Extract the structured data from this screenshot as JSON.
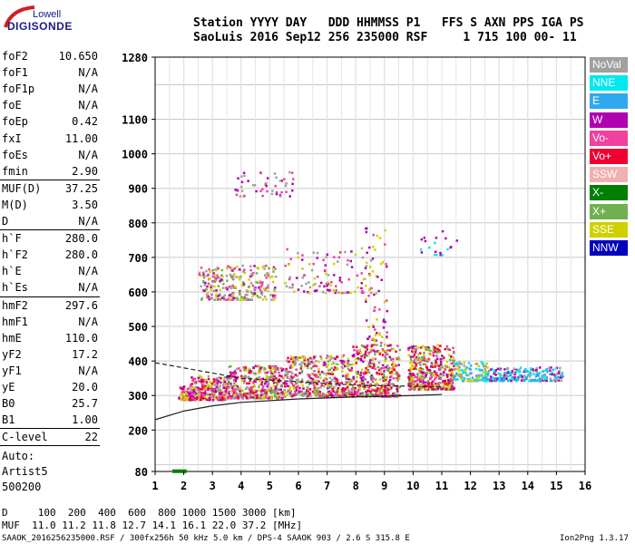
{
  "logo": {
    "top": "Lowell",
    "bottom": "DIGISONDE"
  },
  "header": {
    "line1": "Station YYYY DAY   DDD HHMMSS P1   FFS S AXN PPS IGA PS",
    "line2": "SaoLuis 2016 Sep12 256 235000 RSF     1 715 100 00- 11"
  },
  "params": [
    {
      "key": "foF2",
      "value": "10.650"
    },
    {
      "key": "foF1",
      "value": "N/A"
    },
    {
      "key": "foF1p",
      "value": "N/A"
    },
    {
      "key": "foE",
      "value": "N/A"
    },
    {
      "key": "foEp",
      "value": "0.42"
    },
    {
      "key": "fxI",
      "value": "11.00"
    },
    {
      "key": "foEs",
      "value": "N/A"
    },
    {
      "key": "fmin",
      "value": "2.90"
    },
    {
      "key": "MUF(D)",
      "value": "37.25"
    },
    {
      "key": "M(D)",
      "value": "3.50"
    },
    {
      "key": "D",
      "value": "N/A"
    },
    {
      "key": "h`F",
      "value": "280.0"
    },
    {
      "key": "h`F2",
      "value": "280.0"
    },
    {
      "key": "h`E",
      "value": "N/A"
    },
    {
      "key": "h`Es",
      "value": "N/A"
    },
    {
      "key": "hmF2",
      "value": "297.6"
    },
    {
      "key": "hmF1",
      "value": "N/A"
    },
    {
      "key": "hmE",
      "value": "110.0"
    },
    {
      "key": "yF2",
      "value": "17.2"
    },
    {
      "key": "yF1",
      "value": "N/A"
    },
    {
      "key": "yE",
      "value": "20.0"
    },
    {
      "key": "B0",
      "value": "25.7"
    },
    {
      "key": "B1",
      "value": "1.00"
    },
    {
      "key": "C-level",
      "value": "22"
    }
  ],
  "notes": [
    "Auto:",
    "Artist5",
    "500200"
  ],
  "legend": [
    {
      "label": "NoVal",
      "color": "#a0a0a0"
    },
    {
      "label": "NNE",
      "color": "#00e8f0"
    },
    {
      "label": "E",
      "color": "#30a8f0"
    },
    {
      "label": "W",
      "color": "#b000b0"
    },
    {
      "label": "Vo-",
      "color": "#f040a0"
    },
    {
      "label": "Vo+",
      "color": "#f00030"
    },
    {
      "label": "SSW",
      "color": "#f0b0b0"
    },
    {
      "label": "X-",
      "color": "#008000"
    },
    {
      "label": "X+",
      "color": "#70b050"
    },
    {
      "label": "SSE",
      "color": "#d0d000"
    },
    {
      "label": "NNW",
      "color": "#0000c0"
    }
  ],
  "footer": {
    "d_line": "D     100  200  400  600  800 1000 1500 3000 [km]",
    "muf_line": "MUF  11.0 11.2 11.8 12.7 14.1 16.1 22.0 37.2 [MHz]",
    "info_left": "SAAOK_2016256235000.RSF / 300fx256h 50 kHz 5.0 km / DPS-4 SAAOK 903 / 2.6 S 315.8 E",
    "info_right": "Ion2Png 1.3.17"
  },
  "chart_data": {
    "type": "scatter",
    "xlim": [
      1,
      16
    ],
    "ylim": [
      80,
      1280
    ],
    "x_ticks": [
      1,
      2,
      3,
      4,
      5,
      6,
      7,
      8,
      9,
      10,
      11,
      12,
      13,
      14,
      15,
      16
    ],
    "y_ticks": [
      80,
      200,
      300,
      400,
      500,
      600,
      700,
      800,
      900,
      1000,
      1100,
      1280
    ],
    "grid": true,
    "clusters": [
      {
        "x": [
          1.8,
          2.3
        ],
        "y": [
          290,
          330
        ],
        "n": 80,
        "colors": [
          "#f00030",
          "#f040a0",
          "#b000b0",
          "#d0d000"
        ]
      },
      {
        "x": [
          2.2,
          3.5
        ],
        "y": [
          290,
          360
        ],
        "n": 260,
        "colors": [
          "#f00030",
          "#f040a0",
          "#b000b0",
          "#d0d000",
          "#a0a0a0"
        ]
      },
      {
        "x": [
          3.5,
          5.5
        ],
        "y": [
          295,
          390
        ],
        "n": 380,
        "colors": [
          "#f00030",
          "#f040a0",
          "#b000b0",
          "#d0d000",
          "#70b050",
          "#a0a0a0"
        ]
      },
      {
        "x": [
          5.5,
          7.8
        ],
        "y": [
          300,
          420
        ],
        "n": 420,
        "colors": [
          "#f00030",
          "#f040a0",
          "#b000b0",
          "#d0d000",
          "#70b050",
          "#a0a0a0"
        ]
      },
      {
        "x": [
          7.8,
          9.5
        ],
        "y": [
          300,
          450
        ],
        "n": 380,
        "colors": [
          "#f00030",
          "#f040a0",
          "#b000b0",
          "#d0d000",
          "#70b050"
        ]
      },
      {
        "x": [
          9.8,
          11.4
        ],
        "y": [
          320,
          450
        ],
        "n": 420,
        "colors": [
          "#d0d000",
          "#f00030",
          "#b000b0",
          "#f040a0",
          "#70b050"
        ]
      },
      {
        "x": [
          11.4,
          12.6
        ],
        "y": [
          345,
          400
        ],
        "n": 140,
        "colors": [
          "#00e8f0",
          "#30a8f0",
          "#a0a0a0",
          "#d0d000"
        ]
      },
      {
        "x": [
          12.6,
          15.2
        ],
        "y": [
          345,
          385
        ],
        "n": 240,
        "colors": [
          "#00e8f0",
          "#30a8f0",
          "#b000b0",
          "#a0a0a0"
        ]
      },
      {
        "x": [
          2.5,
          5.2
        ],
        "y": [
          580,
          680
        ],
        "n": 260,
        "colors": [
          "#b000b0",
          "#d0d000",
          "#a0a0a0",
          "#f040a0",
          "#70b050"
        ]
      },
      {
        "x": [
          5.5,
          8.5
        ],
        "y": [
          600,
          730
        ],
        "n": 120,
        "colors": [
          "#b000b0",
          "#f040a0",
          "#d0d000",
          "#a0a0a0"
        ]
      },
      {
        "x": [
          3.7,
          5.8
        ],
        "y": [
          880,
          950
        ],
        "n": 50,
        "colors": [
          "#b000b0",
          "#f040a0",
          "#a0a0a0"
        ]
      },
      {
        "x": [
          8.3,
          9.1
        ],
        "y": [
          430,
          800
        ],
        "n": 80,
        "colors": [
          "#b000b0",
          "#f040a0",
          "#d0d000"
        ]
      },
      {
        "x": [
          10.2,
          11.5
        ],
        "y": [
          710,
          780
        ],
        "n": 20,
        "colors": [
          "#b000b0",
          "#00e8f0"
        ]
      }
    ],
    "x_trace": {
      "x": [
        1.6,
        2.1
      ],
      "y": [
        82,
        86
      ],
      "color": "#008000"
    },
    "lines": [
      {
        "name": "dashed",
        "style": "dashed",
        "color": "#202020",
        "x": [
          1,
          4,
          8,
          11
        ],
        "y": [
          395,
          350,
          330,
          325
        ]
      },
      {
        "name": "profile",
        "style": "solid",
        "color": "#202020",
        "x": [
          1,
          2,
          3,
          4,
          6,
          8,
          10,
          11
        ],
        "y": [
          230,
          255,
          270,
          280,
          290,
          296,
          300,
          303
        ]
      }
    ],
    "axis_title": ""
  }
}
